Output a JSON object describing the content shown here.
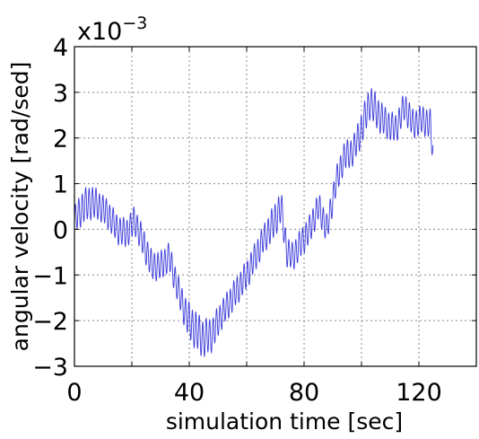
{
  "chart_data": {
    "type": "line",
    "xlabel": "simulation time [sec]",
    "ylabel": "angular velocity [rad/sed]",
    "multiplier_label": "x10",
    "multiplier_exponent": "−3",
    "xlim": [
      0,
      140
    ],
    "ylim": [
      -3,
      4
    ],
    "x_ticks": [
      0,
      40,
      80,
      120
    ],
    "x_tick_labels": [
      "0",
      "40",
      "80",
      "120"
    ],
    "x_grid": [
      0,
      20,
      40,
      60,
      80,
      100,
      120,
      140
    ],
    "y_ticks": [
      -3,
      -2,
      -1,
      0,
      1,
      2,
      3,
      4
    ],
    "y_tick_labels": [
      "−3",
      "−2",
      "−1",
      "0",
      "1",
      "2",
      "3",
      "4"
    ],
    "grid": true,
    "series": [
      {
        "color": "#3b3bdb",
        "oscillation_period": 1.2,
        "x": [
          0,
          3,
          6,
          9,
          12,
          15,
          18,
          21,
          24,
          27,
          30,
          33,
          36,
          39,
          42,
          45,
          48,
          51,
          54,
          57,
          60,
          63,
          66,
          69,
          72,
          74,
          76,
          79,
          82,
          85,
          88,
          91,
          94,
          97,
          100,
          103,
          106,
          109,
          112,
          115,
          118,
          121,
          124,
          125
        ],
        "y": [
          0.2,
          0.5,
          0.6,
          0.5,
          0.3,
          0.0,
          -0.1,
          0.2,
          -0.3,
          -0.8,
          -0.8,
          -0.6,
          -1.3,
          -1.9,
          -2.2,
          -2.4,
          -2.3,
          -1.9,
          -1.6,
          -1.3,
          -1.0,
          -0.6,
          -0.2,
          0.1,
          0.5,
          -0.5,
          -0.6,
          -0.3,
          0.0,
          0.5,
          0.0,
          1.0,
          1.6,
          1.7,
          2.2,
          2.8,
          2.5,
          2.3,
          2.2,
          2.7,
          2.3,
          2.4,
          2.3,
          1.6
        ],
        "amplitude": [
          0.3,
          0.35,
          0.35,
          0.3,
          0.3,
          0.3,
          0.3,
          0.3,
          0.3,
          0.3,
          0.3,
          0.3,
          0.3,
          0.35,
          0.4,
          0.4,
          0.35,
          0.3,
          0.3,
          0.3,
          0.3,
          0.3,
          0.3,
          0.35,
          0.35,
          0.3,
          0.3,
          0.3,
          0.3,
          0.3,
          0.3,
          0.3,
          0.3,
          0.3,
          0.35,
          0.35,
          0.35,
          0.3,
          0.3,
          0.3,
          0.3,
          0.3,
          0.3,
          0.3
        ]
      }
    ]
  }
}
